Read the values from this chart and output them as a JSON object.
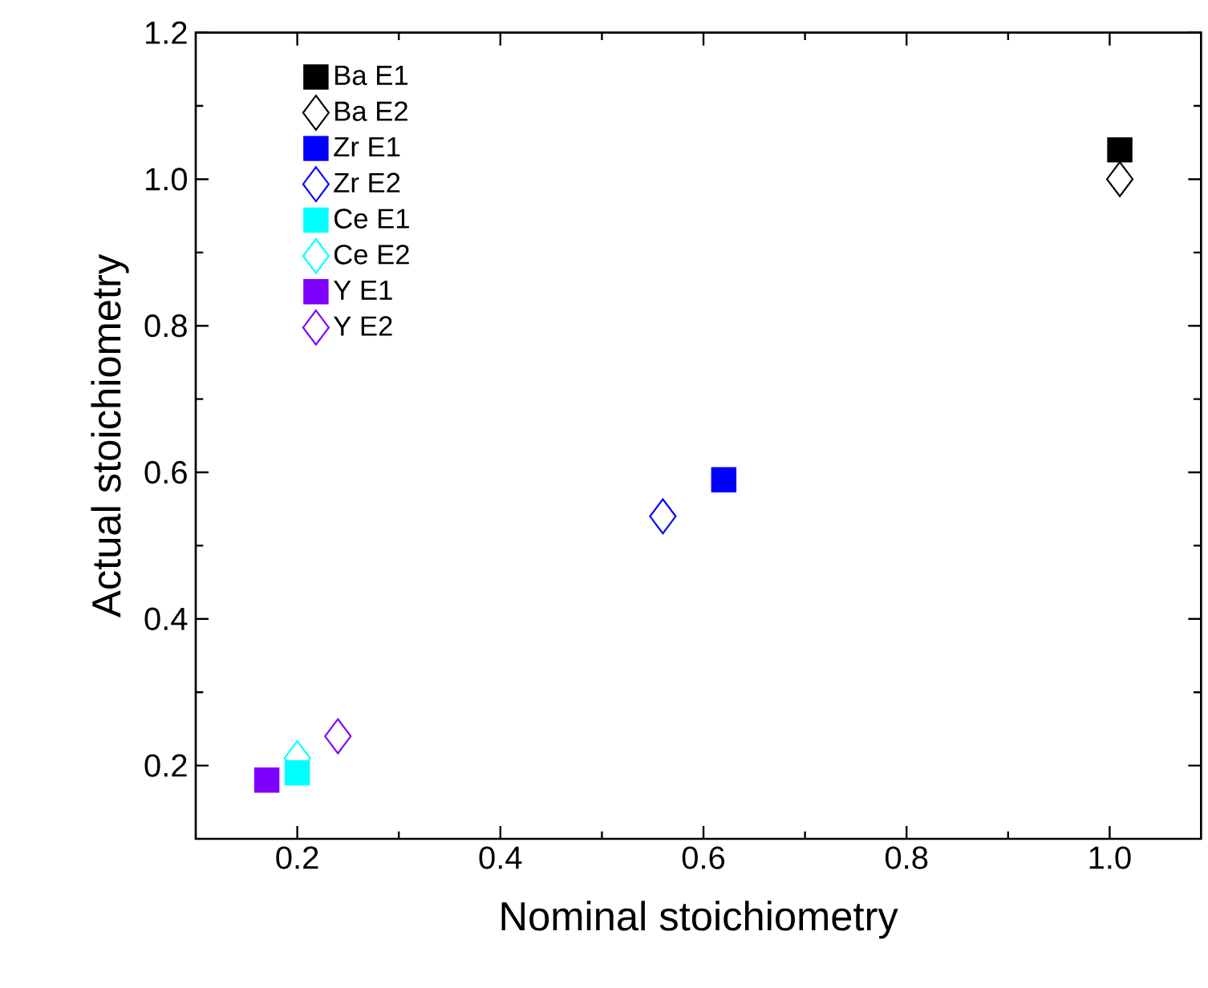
{
  "chart_data": {
    "type": "scatter",
    "xlabel": "Nominal stoichiometry",
    "ylabel": "Actual stoichiometry",
    "xlim": [
      0.1,
      1.09
    ],
    "ylim": [
      0.1,
      1.2
    ],
    "xticks": [
      0.2,
      0.4,
      0.6,
      0.8,
      {
        "value": 1.0,
        "label": "1.0"
      }
    ],
    "yticks": [
      0.2,
      0.4,
      0.6,
      0.8,
      {
        "value": 1.0,
        "label": "1.0"
      },
      1.2
    ],
    "grid": false,
    "legend": "top left",
    "series": [
      {
        "name": "Ba E1",
        "color": "#000000",
        "marker": "square",
        "x": [
          1.01
        ],
        "values": [
          1.04
        ]
      },
      {
        "name": "Ba E2",
        "color": "#000000",
        "marker": "diamond",
        "x": [
          1.01
        ],
        "values": [
          1.0
        ]
      },
      {
        "name": "Zr E1",
        "color": "#0000ff",
        "marker": "square",
        "x": [
          0.62
        ],
        "values": [
          0.59
        ]
      },
      {
        "name": "Zr E2",
        "color": "#0000ff",
        "marker": "diamond",
        "x": [
          0.56
        ],
        "values": [
          0.54
        ]
      },
      {
        "name": "Ce E1",
        "color": "#00ffff",
        "marker": "square",
        "x": [
          0.2
        ],
        "values": [
          0.19
        ]
      },
      {
        "name": "Ce E2",
        "color": "#00ffff",
        "marker": "diamond",
        "x": [
          0.2
        ],
        "values": [
          0.21
        ]
      },
      {
        "name": "Y E1",
        "color": "#8000ff",
        "marker": "square",
        "x": [
          0.17
        ],
        "values": [
          0.18
        ]
      },
      {
        "name": "Y E2",
        "color": "#8000ff",
        "marker": "diamond",
        "x": [
          0.24
        ],
        "values": [
          0.24
        ]
      }
    ]
  }
}
